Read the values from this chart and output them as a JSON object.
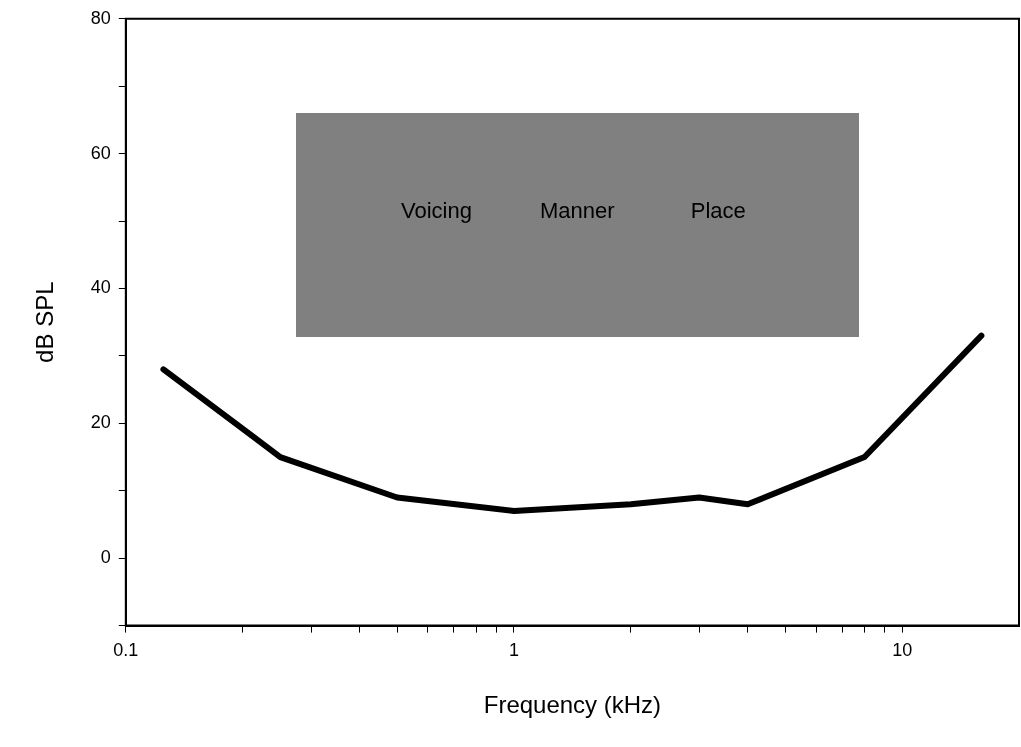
{
  "chart_data": {
    "type": "line",
    "xlabel": "Frequency (kHz)",
    "ylabel": "dB SPL",
    "log": "x",
    "grid": false,
    "legend": false,
    "marker": "none",
    "line_style": "solid",
    "xlim": [
      0.1,
      20
    ],
    "xticks": [
      0.1,
      {
        "value": 0.2,
        "label": null
      },
      {
        "value": 0.3,
        "label": null
      },
      {
        "value": 0.4,
        "label": null
      },
      {
        "value": 0.5,
        "label": null
      },
      {
        "value": 0.6,
        "label": null
      },
      {
        "value": 0.7,
        "label": null
      },
      {
        "value": 0.8,
        "label": null
      },
      {
        "value": 0.9,
        "label": null
      },
      1,
      {
        "value": 2,
        "label": null
      },
      {
        "value": 3,
        "label": null
      },
      {
        "value": 4,
        "label": null
      },
      {
        "value": 5,
        "label": null
      },
      {
        "value": 6,
        "label": null
      },
      {
        "value": 7,
        "label": null
      },
      {
        "value": 8,
        "label": null
      },
      {
        "value": 9,
        "label": null
      },
      10
    ],
    "ylim": [
      -10,
      80
    ],
    "yticks": [
      {
        "value": -10,
        "label": null
      },
      0,
      {
        "value": 10,
        "label": null
      },
      20,
      {
        "value": 30,
        "label": null
      },
      40,
      {
        "value": 50,
        "label": null
      },
      60,
      {
        "value": 70,
        "label": null
      },
      80
    ],
    "series": [
      {
        "color": "#000000",
        "x": [
          0.125,
          0.25,
          0.5,
          1,
          2,
          3,
          4,
          8,
          16
        ],
        "values": [
          28,
          15,
          9,
          7,
          8,
          9,
          8,
          15,
          33
        ]
      }
    ],
    "annotations": [
      "Voicing",
      "Manner",
      "Place"
    ]
  }
}
